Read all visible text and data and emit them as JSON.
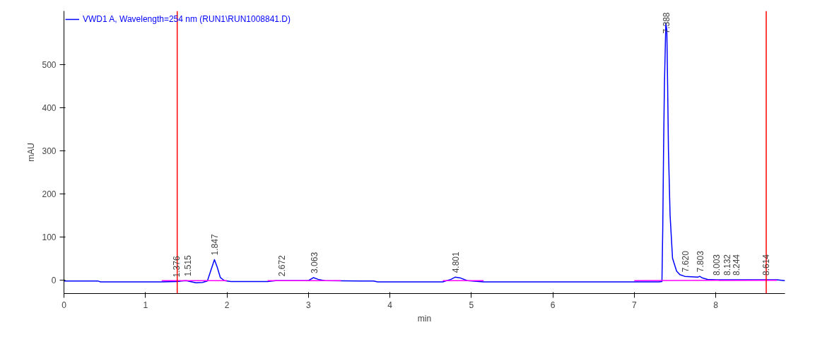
{
  "chart_data": {
    "type": "line",
    "ylabel": "mAU",
    "xlabel": "min",
    "legend": "top",
    "grid": false,
    "xlim": [
      0,
      8.85
    ],
    "ylim": [
      -32,
      625
    ],
    "xticks": [
      0,
      1,
      2,
      3,
      4,
      5,
      6,
      7,
      8
    ],
    "yticks": [
      0,
      100,
      200,
      300,
      400,
      500
    ],
    "series": [
      {
        "name": "VWD1 A, Wavelength=254 nm (RUN1\\RUN1008841.D)",
        "color": "#0000ff",
        "x": [
          0,
          0.42,
          0.45,
          1.2,
          1.38,
          1.5,
          1.55,
          1.62,
          1.7,
          1.76,
          1.8,
          1.847,
          1.88,
          1.92,
          1.97,
          2.05,
          2.5,
          2.6,
          2.75,
          3.0,
          3.063,
          3.12,
          3.2,
          3.8,
          3.85,
          4.65,
          4.75,
          4.801,
          4.87,
          4.95,
          5.15,
          7.0,
          7.3,
          7.34,
          7.35,
          7.36,
          7.37,
          7.388,
          7.4,
          7.41,
          7.42,
          7.44,
          7.47,
          7.52,
          7.56,
          7.62,
          7.7,
          7.78,
          7.803,
          7.84,
          7.9,
          8.0,
          8.1,
          8.5,
          8.75,
          8.85
        ],
        "values": [
          -3,
          -3,
          -5,
          -5,
          -4,
          -2,
          -4,
          -7,
          -6,
          -3,
          20,
          47,
          30,
          5,
          -2,
          -4,
          -4,
          -2,
          -2,
          -2,
          5,
          1,
          -2,
          -3,
          -5,
          -5,
          1,
          6,
          4,
          -2,
          -5,
          -5,
          -5,
          -4,
          120,
          300,
          450,
          597,
          580,
          450,
          300,
          150,
          50,
          20,
          12,
          8,
          7,
          6,
          8,
          4,
          1,
          0,
          0,
          0,
          0,
          -2
        ]
      },
      {
        "color": "#ff00ff",
        "x": [
          1.2,
          2.0,
          2.01,
          2.5,
          3.4,
          3.41,
          4.65,
          5.15,
          5.16,
          7.0,
          8.75
        ],
        "values": [
          -2,
          -2,
          null,
          -2,
          -2,
          null,
          -2,
          -2,
          null,
          -2,
          -1
        ]
      }
    ],
    "ref_lines": [
      {
        "axis": "x",
        "value": 1.39,
        "color": "#ff0000"
      },
      {
        "axis": "x",
        "value": 8.62,
        "color": "#ff0000"
      }
    ],
    "annotations": [
      {
        "text": "1.376",
        "x": 1.376,
        "y": -4
      },
      {
        "text": "1.515",
        "x": 1.515,
        "y": -2
      },
      {
        "text": "1.847",
        "x": 1.847,
        "y": 47
      },
      {
        "text": "2.672",
        "x": 2.672,
        "y": -2
      },
      {
        "text": "3.063",
        "x": 3.063,
        "y": 5
      },
      {
        "text": "4.801",
        "x": 4.801,
        "y": 6
      },
      {
        "text": "7.388",
        "x": 7.388,
        "y": 597
      },
      {
        "text": "7.620",
        "x": 7.62,
        "y": 8
      },
      {
        "text": "7.803",
        "x": 7.803,
        "y": 8
      },
      {
        "text": "8.003",
        "x": 8.003,
        "y": 0
      },
      {
        "text": "8.132",
        "x": 8.132,
        "y": 0
      },
      {
        "text": "8.244",
        "x": 8.244,
        "y": 0
      },
      {
        "text": "8.614",
        "x": 8.614,
        "y": 0
      }
    ]
  }
}
